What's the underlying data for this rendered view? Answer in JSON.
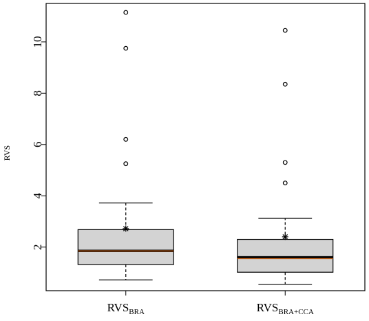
{
  "chart_data": {
    "type": "boxplot",
    "title": "",
    "xlabel": "",
    "ylabel": "RVS",
    "ylim": [
      0.3,
      11.5
    ],
    "yticks": [
      2,
      4,
      6,
      8,
      10
    ],
    "grid": false,
    "colors": {
      "box_fill": "#d3d3d3",
      "median": "#000000",
      "mean_line": "#d2691e",
      "outline": "#000000"
    },
    "categories": [
      {
        "main": "RVS",
        "sub": "BRA"
      },
      {
        "main": "RVS",
        "sub": "BRA+CCA"
      }
    ],
    "boxes": [
      {
        "whisker_low": 0.72,
        "q1": 1.32,
        "median": 1.85,
        "mean_line": 1.85,
        "q3": 2.68,
        "whisker_high": 3.72,
        "mean": 2.72,
        "outliers": [
          5.25,
          6.2,
          9.75,
          11.15
        ]
      },
      {
        "whisker_low": 0.55,
        "q1": 1.02,
        "median": 1.6,
        "mean_line": 1.55,
        "q3": 2.3,
        "whisker_high": 3.12,
        "mean": 2.4,
        "outliers": [
          4.5,
          5.3,
          8.35,
          10.45
        ]
      }
    ]
  }
}
